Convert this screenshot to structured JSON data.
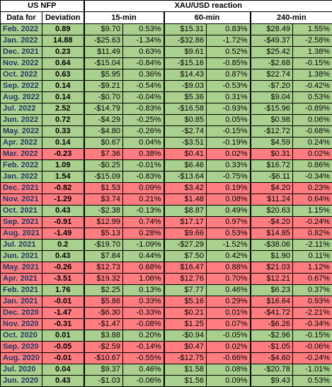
{
  "header": {
    "nfp_title": "US NFP",
    "reaction_title": "XAU/USD reaction",
    "col_date": "Data for",
    "col_deviation": "Deviation",
    "col_15": "15-min",
    "col_60": "60-min",
    "col_240": "240-min"
  },
  "colors": {
    "positive": "#a9d08e",
    "negative": "#ff7c80",
    "date_text": "#1f3864"
  },
  "rows": [
    {
      "date": "Feb. 2022",
      "dev": "0.89",
      "m15": "$9.70",
      "p15": "0.53%",
      "m60": "$15.31",
      "p60": "0.83%",
      "m240": "$28.49",
      "p240": "1.55%",
      "tone": "green"
    },
    {
      "date": "Jan. 2022",
      "dev": "14.88",
      "m15": "-$25.63",
      "p15": "-1.34%",
      "m60": "-$32.86",
      "p60": "-1.72%",
      "m240": "-$49.37",
      "p240": "-2.58%",
      "tone": "green"
    },
    {
      "date": "Dec. 2021",
      "dev": "0.23",
      "m15": "$11.49",
      "p15": "0.63%",
      "m60": "$9.61",
      "p60": "0.52%",
      "m240": "$25.42",
      "p240": "1.38%",
      "tone": "green"
    },
    {
      "date": "Nov. 2022",
      "dev": "0.64",
      "m15": "-$15.04",
      "p15": "-0.84%",
      "m60": "-$15.16",
      "p60": "-0.85%",
      "m240": "-$2.68",
      "p240": "-0.15%",
      "tone": "green"
    },
    {
      "date": "Oct. 2022",
      "dev": "0.63",
      "m15": "$5.95",
      "p15": "0.36%",
      "m60": "$14.43",
      "p60": "0.87%",
      "m240": "$22.74",
      "p240": "1.38%",
      "tone": "green"
    },
    {
      "date": "Sep. 2022",
      "dev": "0.14",
      "m15": "-$9.21",
      "p15": "-0.54%",
      "m60": "-$9.03",
      "p60": "-0.53%",
      "m240": "-$7.20",
      "p240": "-0.42%",
      "tone": "green"
    },
    {
      "date": "Aug. 2022",
      "dev": "0.14",
      "m15": "-$0.70",
      "p15": "-0.04%",
      "m60": "$5.36",
      "p60": "0.31%",
      "m240": "$9.04",
      "p240": "0.53%",
      "tone": "green"
    },
    {
      "date": "Jul. 2022",
      "dev": "2.52",
      "m15": "-$14.79",
      "p15": "-0.83%",
      "m60": "-$16.58",
      "p60": "-0.93%",
      "m240": "-$15.96",
      "p240": "-0.89%",
      "tone": "green"
    },
    {
      "date": "Jun. 2022",
      "dev": "0.72",
      "m15": "-$4.29",
      "p15": "-0.25%",
      "m60": "$0.85",
      "p60": "0.05%",
      "m240": "$0.98",
      "p240": "0.06%",
      "tone": "green"
    },
    {
      "date": "May. 2022",
      "dev": "0.33",
      "m15": "-$4.80",
      "p15": "-0.26%",
      "m60": "-$2.74",
      "p60": "-0.15%",
      "m240": "-$12.72",
      "p240": "-0.68%",
      "tone": "green"
    },
    {
      "date": "Apr. 2022",
      "dev": "0.14",
      "m15": "$0.67",
      "p15": "0.04%",
      "m60": "-$3.51",
      "p60": "-0.19%",
      "m240": "$4.59",
      "p240": "0.24%",
      "tone": "green"
    },
    {
      "date": "Mar. 2022",
      "dev": "-0.23",
      "m15": "$7.36",
      "p15": "0.38%",
      "m60": "$0.41",
      "p60": "0.02%",
      "m240": "$0.31",
      "p240": "0.02%",
      "tone": "red"
    },
    {
      "date": "Feb. 2022",
      "dev": "1.09",
      "m15": "-$0.25",
      "p15": "-0.01%",
      "m60": "$6.46",
      "p60": "0.33%",
      "m240": "$16.72",
      "p240": "0.86%",
      "tone": "green"
    },
    {
      "date": "Jan. 2022",
      "dev": "1.54",
      "m15": "-$15.09",
      "p15": "-0.83%",
      "m60": "-$13.64",
      "p60": "-0.75%",
      "m240": "-$6.11",
      "p240": "-0.34%",
      "tone": "green"
    },
    {
      "date": "Dec. 2021",
      "dev": "-0.82",
      "m15": "$1.53",
      "p15": "0.09%",
      "m60": "$3.42",
      "p60": "0.19%",
      "m240": "$4.20",
      "p240": "0.23%",
      "tone": "red"
    },
    {
      "date": "Nov. 2021",
      "dev": "-1.29",
      "m15": "$3.74",
      "p15": "0.21%",
      "m60": "$1.48",
      "p60": "0.08%",
      "m240": "$11.24",
      "p240": "0.64%",
      "tone": "red"
    },
    {
      "date": "Oct. 2021",
      "dev": "0.43",
      "m15": "-$2.38",
      "p15": "-0.13%",
      "m60": "$8.87",
      "p60": "0.49%",
      "m240": "$20.63",
      "p240": "1.15%",
      "tone": "green"
    },
    {
      "date": "Sep. 2021",
      "dev": "-0.91",
      "m15": "$12.99",
      "p15": "0.74%",
      "m60": "$17.17",
      "p60": "0.97%",
      "m240": "-$4.20",
      "p240": "-0.24%",
      "tone": "red"
    },
    {
      "date": "Aug. 2021",
      "dev": "-1.49",
      "m15": "$5.13",
      "p15": "0.28%",
      "m60": "$9.66",
      "p60": "0.53%",
      "m240": "$14.85",
      "p240": "0.82%",
      "tone": "red"
    },
    {
      "date": "Jul. 2021",
      "dev": "0.2",
      "m15": "-$19.70",
      "p15": "-1.09%",
      "m60": "-$27.29",
      "p60": "-1.52%",
      "m240": "-$38.06",
      "p240": "-2.11%",
      "tone": "green"
    },
    {
      "date": "Jun. 2021",
      "dev": "0.43",
      "m15": "$7.84",
      "p15": "0.44%",
      "m60": "$7.50",
      "p60": "0.42%",
      "m240": "$1.90",
      "p240": "0.11%",
      "tone": "green"
    },
    {
      "date": "May. 2021",
      "dev": "-0.26",
      "m15": "$12.73",
      "p15": "0.68%",
      "m60": "$16.47",
      "p60": "0.88%",
      "m240": "$21.03",
      "p240": "1.12%",
      "tone": "red"
    },
    {
      "date": "Apr. 2021",
      "dev": "-3.51",
      "m15": "$19.32",
      "p15": "1.06%",
      "m60": "$12.76",
      "p60": "0.70%",
      "m240": "$12.21",
      "p240": "0.67%",
      "tone": "red"
    },
    {
      "date": "Feb. 2021",
      "dev": "1.76",
      "m15": "$2.25",
      "p15": "0.13%",
      "m60": "$7.77",
      "p60": "0.46%",
      "m240": "$6.23",
      "p240": "0.37%",
      "tone": "green"
    },
    {
      "date": "Jan. 2021",
      "dev": "-0.01",
      "m15": "$5.86",
      "p15": "0.33%",
      "m60": "$5.16",
      "p60": "0.29%",
      "m240": "$16.64",
      "p240": "0.93%",
      "tone": "red"
    },
    {
      "date": "Dec. 2020",
      "dev": "-1.47",
      "m15": "-$6.30",
      "p15": "-0.33%",
      "m60": "$0.21",
      "p60": "0.01%",
      "m240": "-$41.72",
      "p240": "-2.21%",
      "tone": "red"
    },
    {
      "date": "Nov. 2020",
      "dev": "-0.31",
      "m15": "-$1.47",
      "p15": "-0.08%",
      "m60": "$1.25",
      "p60": "0.07%",
      "m240": "-$6.26",
      "p240": "-0.34%",
      "tone": "red"
    },
    {
      "date": "Oct. 2020",
      "dev": "0.01",
      "m15": "$3.88",
      "p15": "0.20%",
      "m60": "-$0.94",
      "p60": "-0.05%",
      "m240": "-$2.96",
      "p240": "-0.15%",
      "tone": "green"
    },
    {
      "date": "Sep. 2020",
      "dev": "-0.05",
      "m15": "-$2.59",
      "p15": "-0.14%",
      "m60": "$0.47",
      "p60": "0.02%",
      "m240": "-$1.05",
      "p240": "-0.06%",
      "tone": "red"
    },
    {
      "date": "Aug. 2020",
      "dev": "-0.01",
      "m15": "-$10.67",
      "p15": "-0.55%",
      "m60": "-$12.75",
      "p60": "-0.66%",
      "m240": "-$4.60",
      "p240": "-0.24%",
      "tone": "red"
    },
    {
      "date": "Jul. 2020",
      "dev": "0.04",
      "m15": "$9.37",
      "p15": "0.46%",
      "m60": "$1.58",
      "p60": "0.08%",
      "m240": "-$20.78",
      "p240": "-1.01%",
      "tone": "green"
    },
    {
      "date": "Jun. 2020",
      "dev": "0.43",
      "m15": "-$1.03",
      "p15": "-0.06%",
      "m60": "$1.56",
      "p60": "0.09%",
      "m240": "$9.43",
      "p240": "0.53%",
      "tone": "green"
    }
  ]
}
